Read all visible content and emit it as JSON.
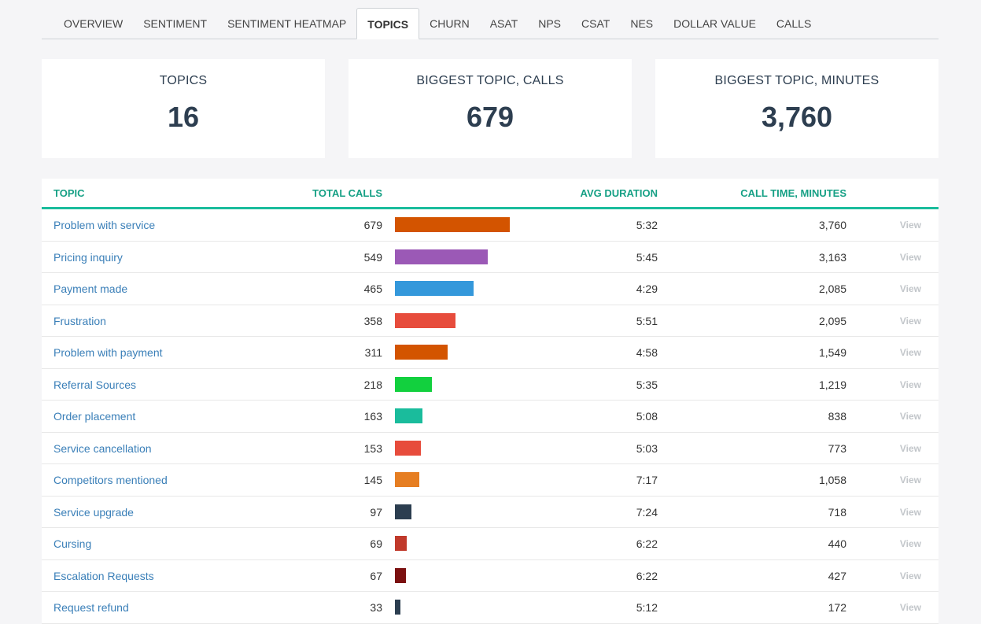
{
  "tabs": [
    {
      "label": "OVERVIEW",
      "active": false
    },
    {
      "label": "SENTIMENT",
      "active": false
    },
    {
      "label": "SENTIMENT HEATMAP",
      "active": false
    },
    {
      "label": "TOPICS",
      "active": true
    },
    {
      "label": "CHURN",
      "active": false
    },
    {
      "label": "ASAT",
      "active": false
    },
    {
      "label": "NPS",
      "active": false
    },
    {
      "label": "CSAT",
      "active": false
    },
    {
      "label": "NES",
      "active": false
    },
    {
      "label": "DOLLAR VALUE",
      "active": false
    },
    {
      "label": "CALLS",
      "active": false
    }
  ],
  "cards": [
    {
      "label": "TOPICS",
      "value": "16"
    },
    {
      "label": "BIGGEST TOPIC, CALLS",
      "value": "679"
    },
    {
      "label": "BIGGEST TOPIC, MINUTES",
      "value": "3,760"
    }
  ],
  "table": {
    "headers": {
      "topic": "TOPIC",
      "total_calls": "TOTAL CALLS",
      "avg_duration": "AVG DURATION",
      "call_time": "CALL TIME, MINUTES"
    },
    "max_calls": 679,
    "rows": [
      {
        "topic": "Problem with service",
        "calls": "679",
        "calls_value": 679,
        "color": "#d35400",
        "duration": "5:32",
        "minutes": "3,760",
        "action": "View"
      },
      {
        "topic": "Pricing inquiry",
        "calls": "549",
        "calls_value": 549,
        "color": "#9b59b6",
        "duration": "5:45",
        "minutes": "3,163",
        "action": "View"
      },
      {
        "topic": "Payment made",
        "calls": "465",
        "calls_value": 465,
        "color": "#3498db",
        "duration": "4:29",
        "minutes": "2,085",
        "action": "View"
      },
      {
        "topic": "Frustration",
        "calls": "358",
        "calls_value": 358,
        "color": "#e74c3c",
        "duration": "5:51",
        "minutes": "2,095",
        "action": "View"
      },
      {
        "topic": "Problem with payment",
        "calls": "311",
        "calls_value": 311,
        "color": "#d35400",
        "duration": "4:58",
        "minutes": "1,549",
        "action": "View"
      },
      {
        "topic": "Referral Sources",
        "calls": "218",
        "calls_value": 218,
        "color": "#12d03e",
        "duration": "5:35",
        "minutes": "1,219",
        "action": "View"
      },
      {
        "topic": "Order placement",
        "calls": "163",
        "calls_value": 163,
        "color": "#1abc9c",
        "duration": "5:08",
        "minutes": "838",
        "action": "View"
      },
      {
        "topic": "Service cancellation",
        "calls": "153",
        "calls_value": 153,
        "color": "#e74c3c",
        "duration": "5:03",
        "minutes": "773",
        "action": "View"
      },
      {
        "topic": "Competitors mentioned",
        "calls": "145",
        "calls_value": 145,
        "color": "#e67e22",
        "duration": "7:17",
        "minutes": "1,058",
        "action": "View"
      },
      {
        "topic": "Service upgrade",
        "calls": "97",
        "calls_value": 97,
        "color": "#2c3e50",
        "duration": "7:24",
        "minutes": "718",
        "action": "View"
      },
      {
        "topic": "Cursing",
        "calls": "69",
        "calls_value": 69,
        "color": "#c0392b",
        "duration": "6:22",
        "minutes": "440",
        "action": "View"
      },
      {
        "topic": "Escalation Requests",
        "calls": "67",
        "calls_value": 67,
        "color": "#7b1010",
        "duration": "6:22",
        "minutes": "427",
        "action": "View"
      },
      {
        "topic": "Request refund",
        "calls": "33",
        "calls_value": 33,
        "color": "#2c3e50",
        "duration": "5:12",
        "minutes": "172",
        "action": "View"
      }
    ]
  }
}
